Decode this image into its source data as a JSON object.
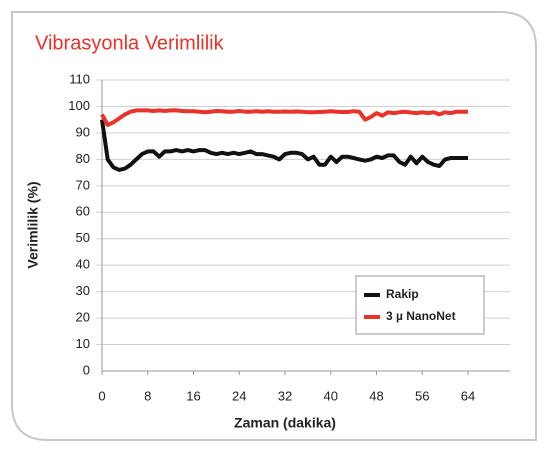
{
  "chart_data": {
    "type": "line",
    "title": "Vibrasyonla Verimlilik",
    "x_label": "Zaman (dakika)",
    "y_label": "Verimlilik (%)",
    "x": [
      0,
      1,
      2,
      3,
      4,
      5,
      6,
      7,
      8,
      9,
      10,
      11,
      12,
      13,
      14,
      15,
      16,
      17,
      18,
      19,
      20,
      21,
      22,
      23,
      24,
      25,
      26,
      27,
      28,
      29,
      30,
      31,
      32,
      33,
      34,
      35,
      36,
      37,
      38,
      39,
      40,
      41,
      42,
      43,
      44,
      45,
      46,
      47,
      48,
      49,
      50,
      51,
      52,
      53,
      54,
      55,
      56,
      57,
      58,
      59,
      60,
      61,
      62,
      63,
      64
    ],
    "series": [
      {
        "name": "Rakip",
        "color": "#111111",
        "values": [
          95,
          80,
          77,
          76,
          76.5,
          78,
          80,
          82,
          83,
          83,
          81,
          83,
          83,
          83.5,
          83,
          83.5,
          83,
          83.5,
          83.5,
          82.5,
          82,
          82.5,
          82,
          82.5,
          82,
          82.5,
          83,
          82,
          82,
          81.5,
          81,
          80,
          82,
          82.5,
          82.5,
          82,
          80,
          81,
          78,
          78,
          81,
          79,
          81,
          81,
          80.5,
          80,
          79.5,
          80,
          81,
          80.5,
          81.5,
          81.5,
          79,
          78,
          81,
          78.5,
          81,
          79,
          78,
          77.5,
          80,
          80.5,
          80.5,
          80.5,
          80.5
        ]
      },
      {
        "name": "3 µ NanoNet",
        "color": "#e8322a",
        "values": [
          97,
          93,
          94,
          95.5,
          97,
          98,
          98.5,
          98.5,
          98.5,
          98.3,
          98.5,
          98.3,
          98.5,
          98.5,
          98.3,
          98.2,
          98.2,
          98,
          97.8,
          98,
          98.3,
          98.2,
          98,
          98,
          98.3,
          98,
          98,
          98.2,
          98,
          98.2,
          98,
          98,
          98.1,
          98,
          98.1,
          98,
          97.8,
          97.8,
          97.9,
          98,
          98.2,
          98,
          97.9,
          97.9,
          98.2,
          98,
          95,
          96,
          97.5,
          96.5,
          97.8,
          97.5,
          97.8,
          98,
          97.7,
          97.5,
          97.8,
          97.5,
          97.8,
          97,
          97.8,
          97.5,
          98,
          98,
          98
        ]
      }
    ],
    "xlim": [
      0,
      64
    ],
    "xticks": [
      0,
      8,
      16,
      24,
      32,
      40,
      48,
      56,
      64
    ],
    "ylim": [
      0,
      110
    ],
    "yticks": [
      0,
      10,
      20,
      30,
      40,
      50,
      60,
      70,
      80,
      90,
      100,
      110
    ],
    "grid": true,
    "legend": "lower right",
    "title_color": "#e8322a"
  }
}
